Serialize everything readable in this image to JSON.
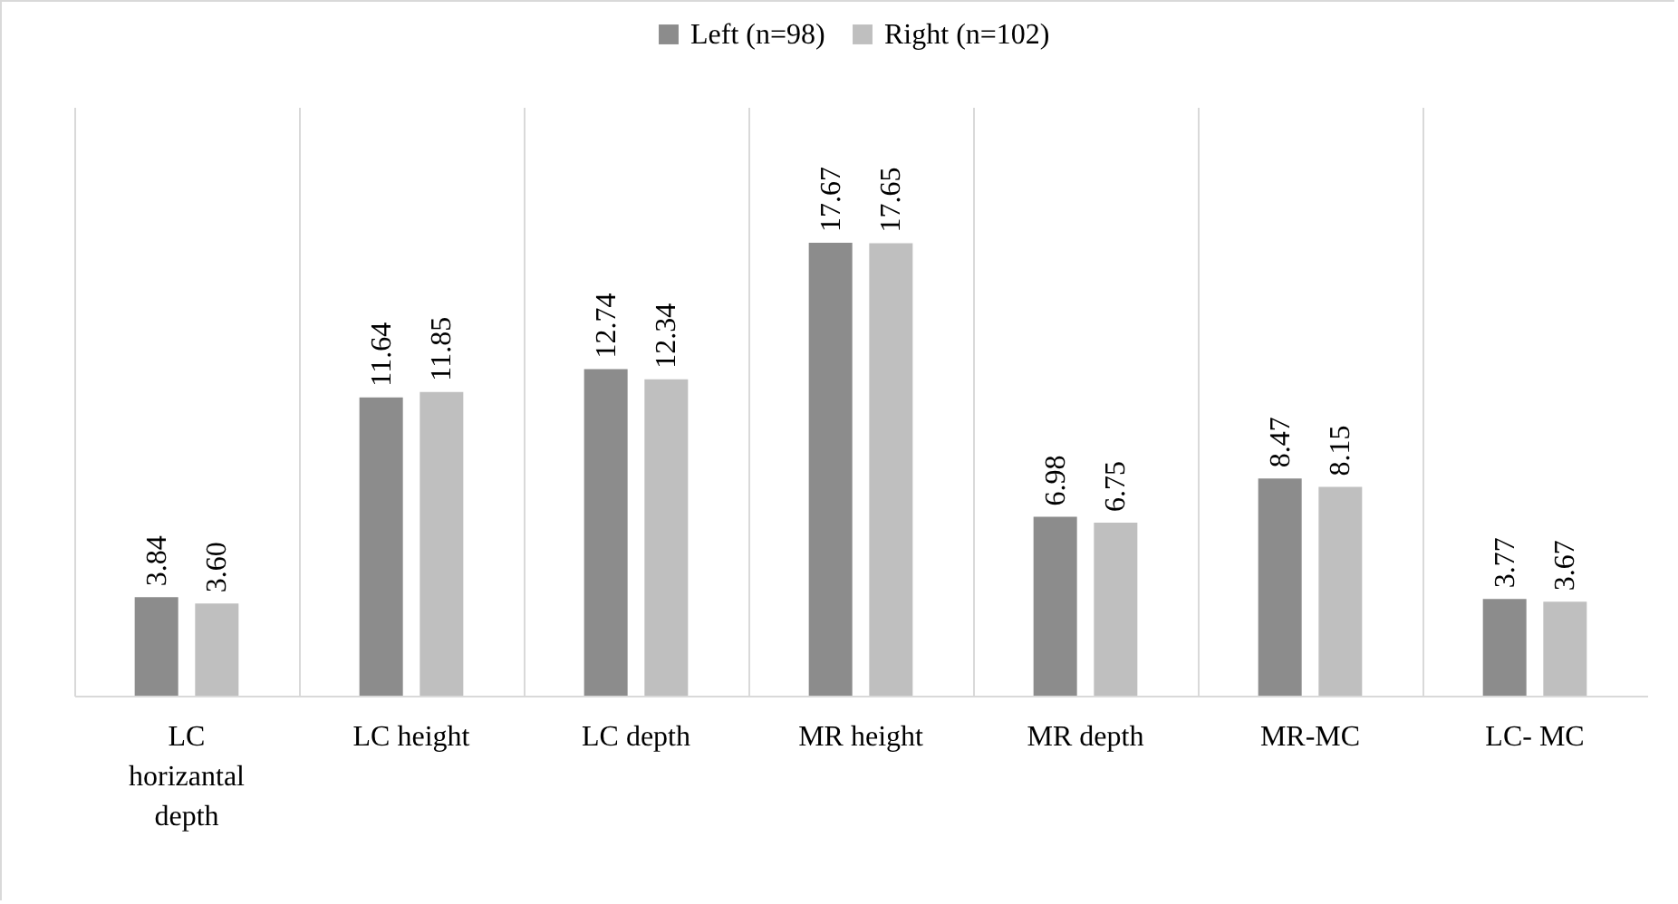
{
  "chart_data": {
    "type": "bar",
    "categories": [
      "LC horizantal depth",
      "LC height",
      "LC depth",
      "MR height",
      "MR depth",
      "MR-MC",
      "LC- MC"
    ],
    "series": [
      {
        "name": "Left (n=98)",
        "color": "#8c8c8c",
        "values": [
          3.84,
          11.64,
          12.74,
          17.67,
          6.98,
          8.47,
          3.77
        ],
        "value_labels": [
          "3.84",
          "11.64",
          "12.74",
          "17.67",
          "6.98",
          "8.47",
          "3.77"
        ]
      },
      {
        "name": "Right (n=102)",
        "color": "#bfbfbf",
        "values": [
          3.6,
          11.85,
          12.34,
          17.65,
          6.75,
          8.15,
          3.67
        ],
        "value_labels": [
          "3.60",
          "11.85",
          "12.34",
          "17.65",
          "6.75",
          "8.15",
          "3.67"
        ]
      }
    ],
    "legend": "top",
    "grid": "x"
  }
}
